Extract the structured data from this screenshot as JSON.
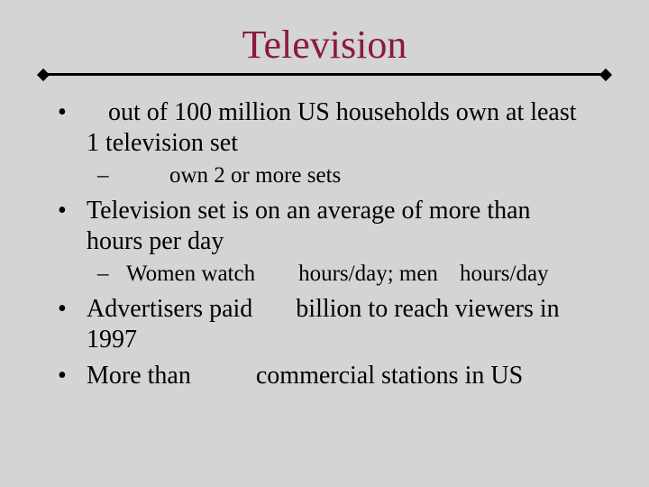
{
  "slide": {
    "title": "Television",
    "title_color": "#8b1a3a",
    "background_color": "#d4d4d4",
    "font_family": "Times New Roman",
    "body_font_size_pt": 21,
    "sub_font_size_pt": 19,
    "rule_color": "#000000",
    "bullets": [
      {
        "text_parts": [
          "   out of 100 million US households own at least 1 television set"
        ],
        "sub": [
          {
            "text_parts": [
              "     own 2 or more sets"
            ]
          }
        ]
      },
      {
        "text_parts": [
          "Television set is on an average of more than    hours per day"
        ],
        "sub": [
          {
            "text_parts": [
              "Women watch      hours/day; men   hours/day"
            ]
          }
        ]
      },
      {
        "text_parts": [
          "Advertisers paid       billion to reach viewers in 1997"
        ]
      },
      {
        "text_parts": [
          "More than           commercial stations in US"
        ]
      }
    ]
  }
}
